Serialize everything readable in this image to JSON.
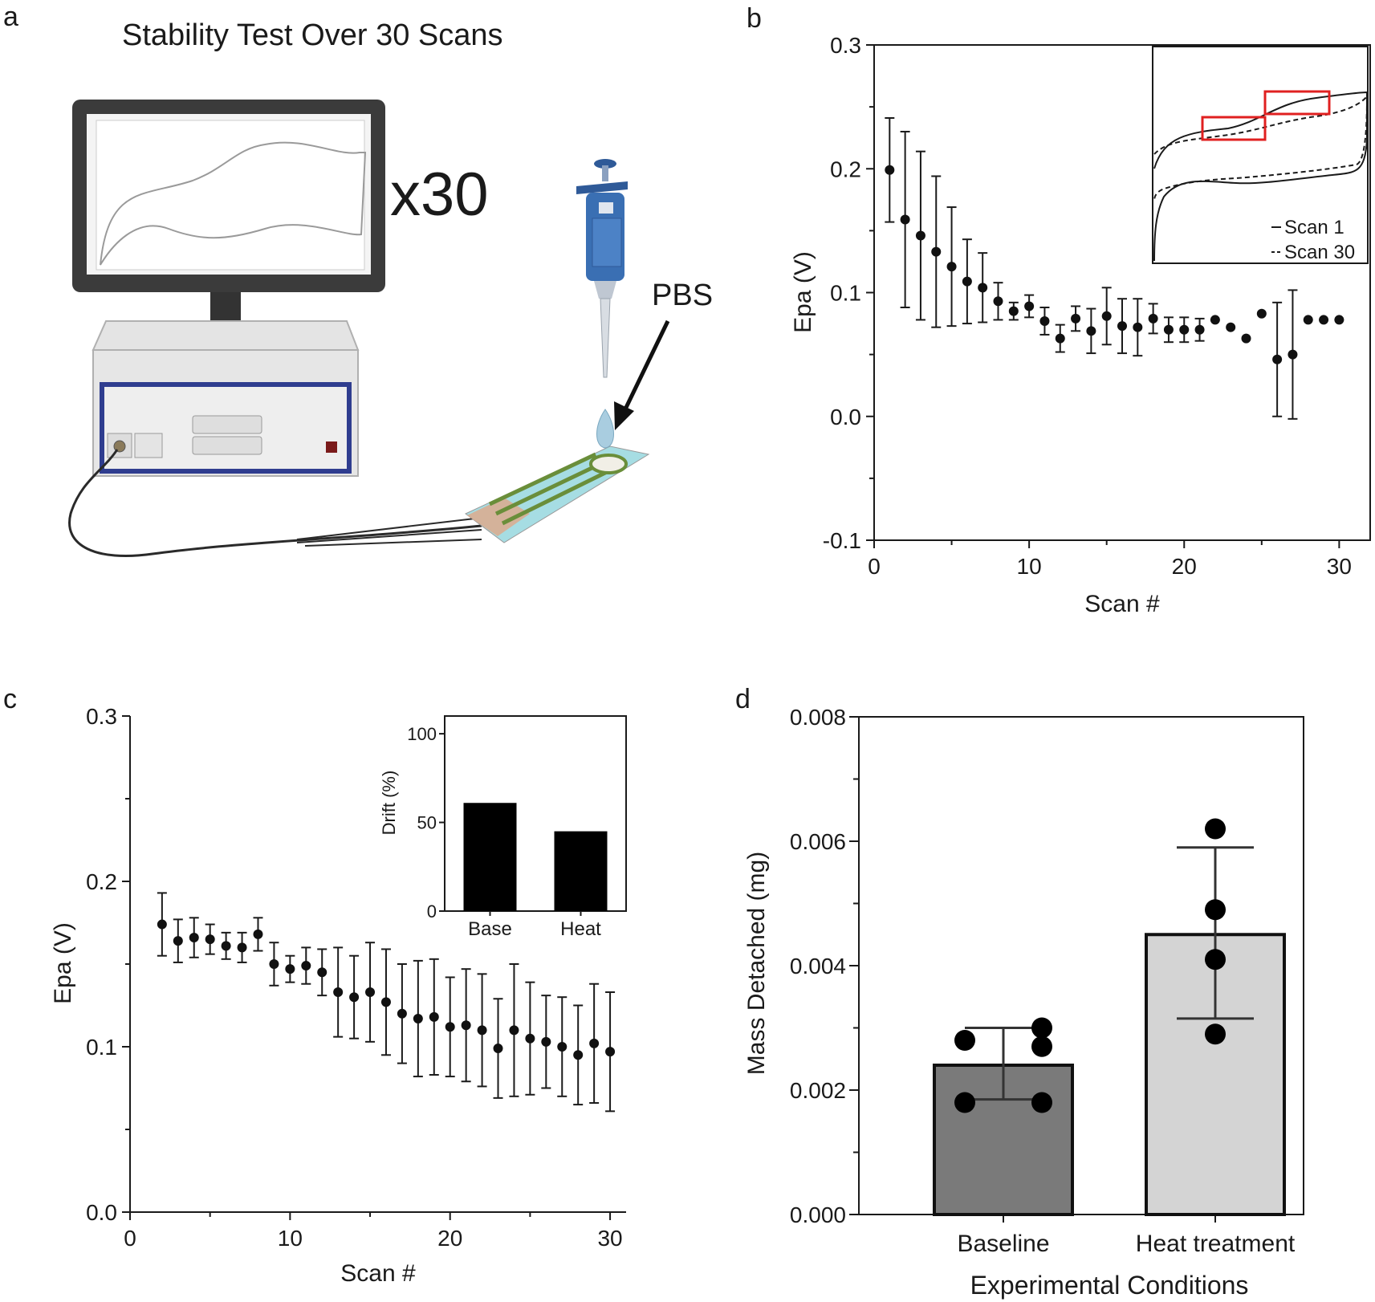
{
  "panel_labels": {
    "a": "a",
    "b": "b",
    "c": "c",
    "d": "d"
  },
  "panel_a": {
    "title": "Stability Test Over 30 Scans",
    "multiplier": "x30",
    "reagent": "PBS"
  },
  "chart_data": [
    {
      "id": "b",
      "type": "scatter",
      "xlabel": "Scan #",
      "ylabel": "Epa (V)",
      "xlim": [
        0,
        32
      ],
      "ylim": [
        -0.1,
        0.3
      ],
      "xticks": [
        0,
        10,
        20,
        30
      ],
      "yticks": [
        -0.1,
        0.0,
        0.1,
        0.2,
        0.3
      ],
      "ytick_labels": [
        "-0.1",
        "0.0",
        "0.1",
        "0.2",
        "0.3"
      ],
      "x": [
        1,
        2,
        3,
        4,
        5,
        6,
        7,
        8,
        9,
        10,
        11,
        12,
        13,
        14,
        15,
        16,
        17,
        18,
        19,
        20,
        21,
        22,
        23,
        24,
        25,
        26,
        27,
        28,
        29,
        30
      ],
      "y": [
        0.199,
        0.159,
        0.146,
        0.133,
        0.121,
        0.109,
        0.104,
        0.093,
        0.085,
        0.089,
        0.077,
        0.063,
        0.079,
        0.069,
        0.081,
        0.073,
        0.072,
        0.079,
        0.07,
        0.07,
        0.07,
        0.078,
        0.072,
        0.063,
        0.083,
        0.046,
        0.05,
        0.078,
        0.078,
        0.078
      ],
      "yerr": [
        0.042,
        0.071,
        0.068,
        0.061,
        0.048,
        0.034,
        0.028,
        0.015,
        0.007,
        0.009,
        0.011,
        0.011,
        0.01,
        0.018,
        0.023,
        0.022,
        0.023,
        0.012,
        0.01,
        0.01,
        0.009,
        0,
        0,
        0,
        0,
        0.046,
        0.052,
        0,
        0,
        0
      ],
      "inset": {
        "type": "line",
        "legend": [
          "Scan 1",
          "Scan 30"
        ],
        "legend_position": "bottom-right"
      }
    },
    {
      "id": "c",
      "type": "scatter",
      "xlabel": "Scan #",
      "ylabel": "Epa (V)",
      "xlim": [
        0,
        31
      ],
      "ylim": [
        0.0,
        0.3
      ],
      "xticks": [
        0,
        10,
        20,
        30
      ],
      "yticks": [
        0.0,
        0.1,
        0.2,
        0.3
      ],
      "ytick_labels": [
        "0.0",
        "0.1",
        "0.2",
        "0.3"
      ],
      "x": [
        2,
        3,
        4,
        5,
        6,
        7,
        8,
        9,
        10,
        11,
        12,
        13,
        14,
        15,
        16,
        17,
        18,
        19,
        20,
        21,
        22,
        23,
        24,
        25,
        26,
        27,
        28,
        29,
        30
      ],
      "y": [
        0.174,
        0.164,
        0.166,
        0.165,
        0.161,
        0.16,
        0.168,
        0.15,
        0.147,
        0.149,
        0.145,
        0.133,
        0.13,
        0.133,
        0.127,
        0.12,
        0.117,
        0.118,
        0.112,
        0.113,
        0.11,
        0.099,
        0.11,
        0.105,
        0.103,
        0.1,
        0.095,
        0.102,
        0.097
      ],
      "yerr": [
        0.019,
        0.013,
        0.012,
        0.009,
        0.008,
        0.009,
        0.01,
        0.013,
        0.008,
        0.011,
        0.014,
        0.027,
        0.025,
        0.03,
        0.032,
        0.03,
        0.035,
        0.035,
        0.03,
        0.034,
        0.034,
        0.03,
        0.04,
        0.034,
        0.028,
        0.03,
        0.03,
        0.036,
        0.036
      ],
      "inset": {
        "type": "bar",
        "ylabel": "Drift (%)",
        "ylim": [
          0,
          110
        ],
        "yticks": [
          0,
          50,
          100
        ],
        "categories": [
          "Base",
          "Heat"
        ],
        "values": [
          61,
          45
        ]
      }
    },
    {
      "id": "d",
      "type": "bar",
      "xlabel": "Experimental Conditions",
      "ylabel": "Mass Detached (mg)",
      "ylim": [
        0,
        0.008
      ],
      "yticks": [
        0.0,
        0.002,
        0.004,
        0.006,
        0.008
      ],
      "ytick_labels": [
        "0.000",
        "0.002",
        "0.004",
        "0.006",
        "0.008"
      ],
      "categories": [
        "Baseline",
        "Heat treatment"
      ],
      "values": [
        0.0024,
        0.0045
      ],
      "err_low": [
        0.00185,
        0.00315
      ],
      "err_high": [
        0.003,
        0.0059
      ],
      "points": [
        [
          0.0028,
          0.0018,
          0.003,
          0.0027,
          0.0018
        ],
        [
          0.0062,
          0.0049,
          0.0041,
          0.0029
        ]
      ],
      "colors": [
        "#7a7a7a",
        "#d4d4d4"
      ]
    }
  ]
}
